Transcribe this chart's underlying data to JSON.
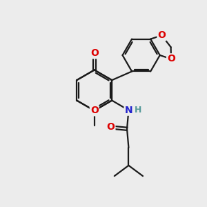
{
  "bg_color": "#ececec",
  "bond_color": "#1a1a1a",
  "bond_width": 1.6,
  "atom_colors": {
    "O": "#dd0000",
    "N": "#2222cc",
    "H": "#559999",
    "C": "#1a1a1a"
  },
  "figsize": [
    3.0,
    3.0
  ],
  "dpi": 100
}
